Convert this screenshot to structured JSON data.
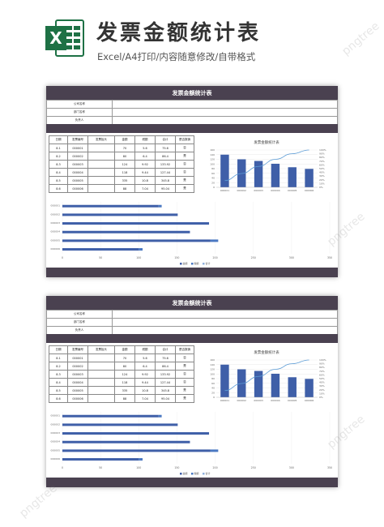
{
  "header": {
    "logo_letter": "X",
    "title": "发票金额统计表",
    "subtitle": "Excel/A4打印/内容随意修改/自带格式"
  },
  "sheet": {
    "title": "发票金额统计表",
    "info_labels": [
      "公司名称",
      "部门名称",
      "负责人"
    ],
    "table": {
      "headers": [
        "日期",
        "发票编号",
        "发票抬头",
        "金额",
        "税额",
        "合计",
        "是否报销"
      ],
      "rows": [
        [
          "8.1",
          "000001",
          "",
          "70",
          "5.6",
          "75.6",
          "否"
        ],
        [
          "8.2",
          "000002",
          "",
          "80",
          "6.4",
          "86.4",
          "是"
        ],
        [
          "8.3",
          "000003",
          "",
          "124",
          "9.92",
          "133.92",
          "否"
        ],
        [
          "8.4",
          "000004",
          "",
          "118",
          "9.44",
          "127.44",
          "否"
        ],
        [
          "8.5",
          "000005",
          "",
          "335",
          "10.8",
          "345.8",
          "是"
        ],
        [
          "8.6",
          "000006",
          "",
          "88",
          "7.04",
          "95.04",
          "是"
        ]
      ]
    }
  },
  "colors": {
    "dark_band": "#4a4150",
    "bar": "#3f5fa8",
    "bar_light": "#4a78c2",
    "line": "#5b9bd5",
    "excel_green": "#1e7145"
  },
  "chart_data": [
    {
      "type": "bar",
      "title": "发票金额统计表",
      "categories": [
        "000001",
        "000002",
        "000003",
        "000004",
        "000005",
        "000006"
      ],
      "series": [
        {
          "values": [
            140,
            120,
            113,
            101,
            86,
            79
          ]
        }
      ],
      "line_series": {
        "values": [
          18,
          37,
          56,
          75,
          90,
          100
        ]
      },
      "y_ticks": [
        "0",
        "20",
        "40",
        "60",
        "80",
        "100",
        "120",
        "140",
        "160"
      ],
      "y2_ticks": [
        "0%",
        "10%",
        "20%",
        "30%",
        "40%",
        "50%",
        "60%",
        "70%",
        "80%",
        "90%",
        "100%"
      ],
      "ylim": [
        0,
        160
      ],
      "y2lim": [
        0,
        100
      ]
    },
    {
      "type": "bar",
      "orientation": "horizontal",
      "categories": [
        "000006",
        "000005",
        "000004",
        "000003",
        "000002",
        "000001"
      ],
      "series": [
        {
          "name": "金额",
          "values": [
            100,
            194,
            167,
            192,
            151,
            126
          ]
        },
        {
          "name": "税额",
          "values": [
            5,
            10,
            0,
            0,
            0,
            4
          ]
        },
        {
          "name": "合计",
          "values": [
            0,
            0,
            0,
            0,
            0,
            0
          ]
        }
      ],
      "x_ticks": [
        "0",
        "50",
        "100",
        "150",
        "200",
        "250",
        "300",
        "350"
      ],
      "xlim": [
        0,
        350
      ]
    }
  ],
  "watermark_text": "pngtree"
}
